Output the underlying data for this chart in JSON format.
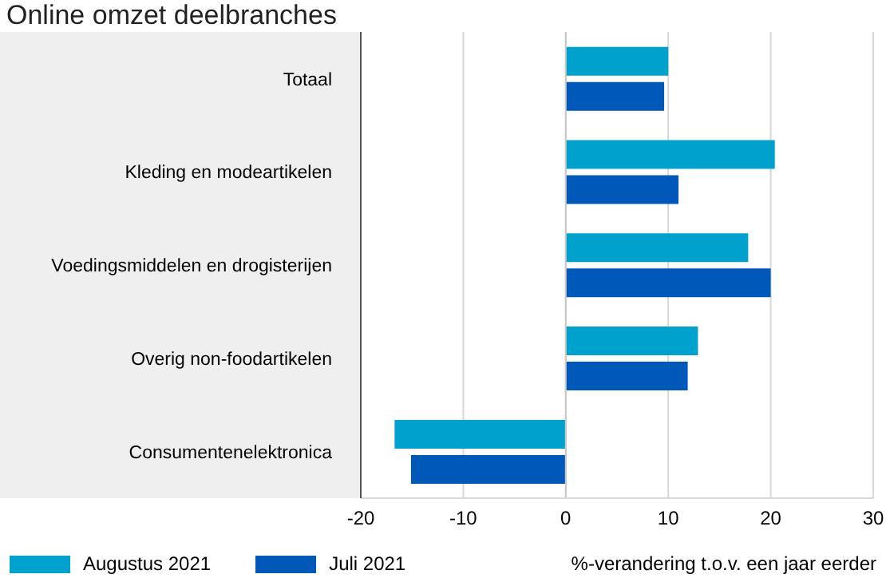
{
  "chart_data": {
    "type": "bar",
    "orientation": "horizontal",
    "title": "Online omzet deelbranches",
    "xlabel": "%-verandering t.o.v. een jaar eerder",
    "categories": [
      "Totaal",
      "Kleding en modeartikelen",
      "Voedingsmiddelen en drogisterijen",
      "Overig non-foodartikelen",
      "Consumentenelektronica"
    ],
    "series": [
      {
        "name": "Augustus 2021",
        "color": "#00a1cd",
        "values": [
          10.0,
          20.4,
          17.8,
          12.9,
          -16.7
        ]
      },
      {
        "name": "Juli 2021",
        "color": "#0058b8",
        "values": [
          9.6,
          11.0,
          20.0,
          11.9,
          -15.1
        ]
      }
    ],
    "xlim": [
      -20,
      30
    ],
    "xticks": [
      -20,
      -10,
      0,
      10,
      20,
      30
    ],
    "grid": "x",
    "legend": "bottom"
  }
}
